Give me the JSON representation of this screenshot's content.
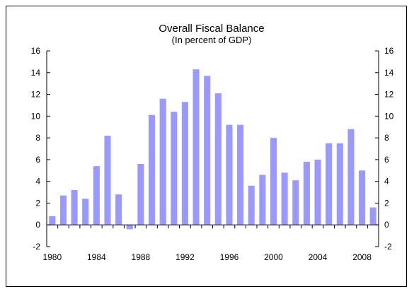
{
  "chart_data": {
    "type": "bar",
    "title": "Overall Fiscal Balance",
    "subtitle": "(In percent of GDP)",
    "xlabel": "",
    "ylabel": "",
    "ylim": [
      -2,
      16
    ],
    "yticks": [
      -2,
      0,
      2,
      4,
      6,
      8,
      10,
      12,
      14,
      16
    ],
    "right_axis_ticks": true,
    "grid": false,
    "legend": "none",
    "bar_color": "#9999ff",
    "categories": [
      1980,
      1981,
      1982,
      1983,
      1984,
      1985,
      1986,
      1987,
      1988,
      1989,
      1990,
      1991,
      1992,
      1993,
      1994,
      1995,
      1996,
      1997,
      1998,
      1999,
      2000,
      2001,
      2002,
      2003,
      2004,
      2005,
      2006,
      2007,
      2008,
      2009
    ],
    "x_tick_labels": [
      "1980",
      "1984",
      "1988",
      "1992",
      "1996",
      "2000",
      "2004",
      "2008"
    ],
    "values": [
      0.8,
      2.7,
      3.2,
      2.4,
      5.4,
      8.2,
      2.8,
      -0.4,
      5.6,
      10.1,
      11.6,
      10.4,
      11.3,
      14.3,
      13.7,
      12.1,
      9.2,
      9.2,
      3.6,
      4.6,
      8.0,
      4.8,
      4.1,
      5.8,
      6.0,
      7.5,
      7.5,
      8.8,
      5.0,
      1.6
    ]
  }
}
